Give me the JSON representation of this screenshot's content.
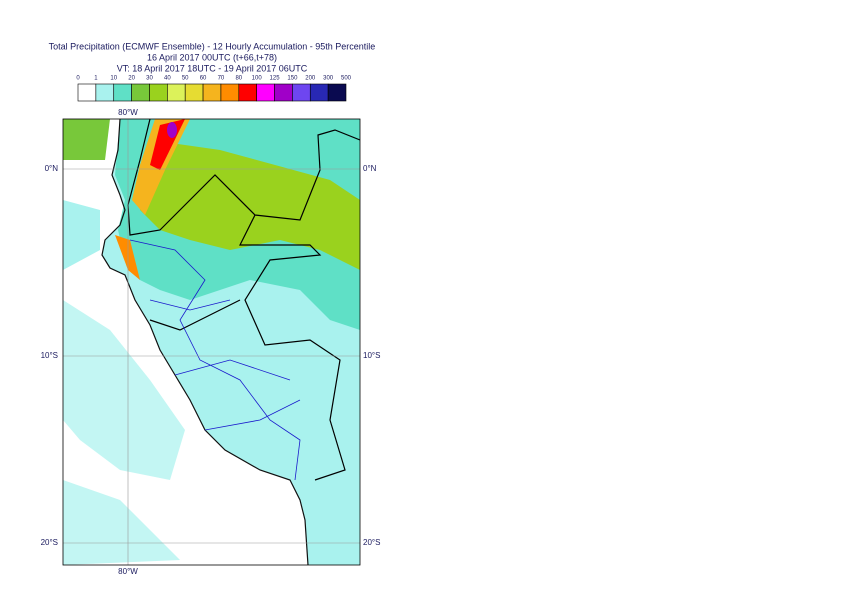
{
  "header": {
    "title": "Total Precipitation (ECMWF Ensemble) - 12 Hourly Accumulation - 95th Percentile",
    "run": "16 April 2017 00UTC (t+66,t+78)",
    "valid": "VT: 18 April 2017 18UTC - 19 April 2017 06UTC"
  },
  "legend": {
    "labels": [
      "0",
      "1",
      "10",
      "20",
      "30",
      "40",
      "50",
      "60",
      "70",
      "80",
      "100",
      "125",
      "150",
      "200",
      "300",
      "500"
    ],
    "colors": [
      "#ffffff",
      "#a9f2ee",
      "#5fe0c6",
      "#78c83a",
      "#9ad21e",
      "#dcf25a",
      "#e6dc32",
      "#f5b41e",
      "#ff8c00",
      "#ff0000",
      "#ff00ff",
      "#a000c8",
      "#6e46f0",
      "#2828b4",
      "#0a0a50"
    ]
  },
  "map": {
    "top_lon": "80°W",
    "bottom_lon": "80°W",
    "lat_labels": [
      "0°N",
      "10°S",
      "20°S"
    ]
  }
}
